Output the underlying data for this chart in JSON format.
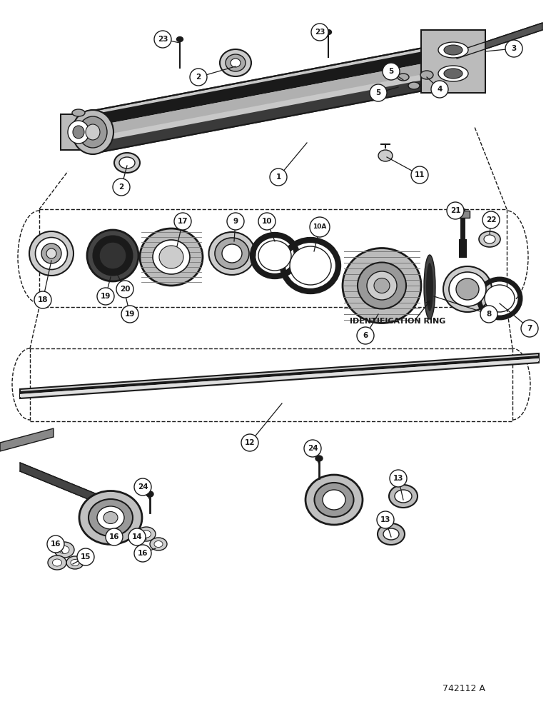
{
  "bg_color": "#ffffff",
  "line_color": "#1a1a1a",
  "fig_width": 7.72,
  "fig_height": 10.0,
  "dpi": 100,
  "part_number_text": "742112 A"
}
